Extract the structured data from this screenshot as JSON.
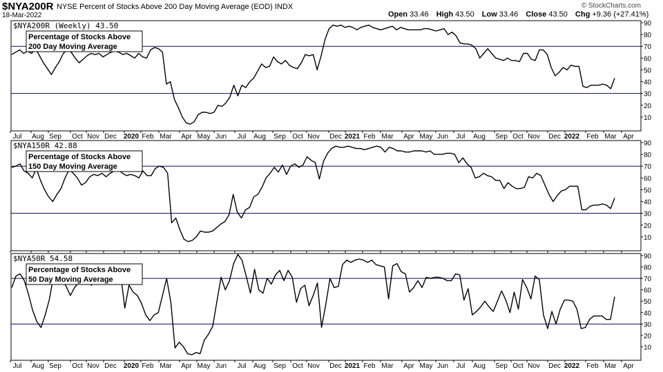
{
  "header": {
    "symbol": "$NYA200R",
    "description": "NYSE Percent of Stocks Above 200 Day Moving Average (EOD) INDX",
    "date": "18-Mar-2022",
    "open_label": "Open",
    "open": "33.46",
    "high_label": "High",
    "high": "43.50",
    "low_label": "Low",
    "low": "33.46",
    "close_label": "Close",
    "close": "43.50",
    "chg_label": "Chg",
    "chg": "+9.36 (+27.41%)",
    "chg_color": "#000000",
    "brand": "© StockCharts.com"
  },
  "chart_data": [
    {
      "type": "line",
      "title": "$NYA200R (Weekly) 43.50",
      "label": "Percentage of Stocks Above 200 Day Moving Average",
      "label_lines": [
        "Percentage of Stocks Above",
        "200 Day Moving Average"
      ],
      "ylim": [
        0,
        90
      ],
      "yticks": [
        10,
        20,
        30,
        40,
        50,
        60,
        70,
        80,
        90
      ],
      "reference_lines": [
        30,
        70
      ],
      "x_labels": [
        "Jul",
        "Aug",
        "Sep",
        "Oct",
        "Nov",
        "Dec",
        "2020",
        "Feb",
        "Mar",
        "Apr",
        "May",
        "Jun",
        "Jul",
        "Aug",
        "Sep",
        "Oct",
        "Nov",
        "Dec",
        "2021",
        "Feb",
        "Mar",
        "Apr",
        "May",
        "Jun",
        "Jul",
        "Aug",
        "Sep",
        "Oct",
        "Nov",
        "Dec",
        "2022",
        "Feb",
        "Mar",
        "Apr"
      ],
      "values": [
        63,
        65,
        67,
        64,
        66,
        64,
        68,
        62,
        56,
        51,
        46,
        52,
        57,
        64,
        67,
        65,
        60,
        56,
        59,
        62,
        64,
        63,
        64,
        61,
        63,
        65,
        66,
        65,
        63,
        64,
        62,
        60,
        64,
        61,
        60,
        67,
        69,
        68,
        65,
        38,
        40,
        25,
        18,
        10,
        5,
        4,
        6,
        12,
        14,
        14,
        13,
        14,
        20,
        19,
        22,
        27,
        37,
        28,
        37,
        35,
        40,
        43,
        49,
        55,
        52,
        53,
        61,
        57,
        55,
        58,
        54,
        52,
        51,
        56,
        63,
        62,
        63,
        50,
        62,
        76,
        85,
        88,
        87,
        88,
        86,
        87,
        86,
        84,
        86,
        87,
        88,
        86,
        85,
        84,
        85,
        86,
        87,
        84,
        86,
        85,
        84,
        84,
        84,
        84,
        85,
        85,
        84,
        83,
        84,
        85,
        80,
        82,
        79,
        73,
        72,
        72,
        71,
        68,
        60,
        64,
        68,
        64,
        60,
        59,
        58,
        60,
        58,
        58,
        57,
        64,
        64,
        59,
        58,
        67,
        67,
        63,
        52,
        45,
        48,
        52,
        50,
        54,
        53,
        53,
        36,
        35,
        37,
        37,
        37,
        38,
        37,
        34,
        43
      ]
    },
    {
      "type": "line",
      "title": "$NYA150R 42.88",
      "label": "Percentage of Stocks Above 150 Day Moving Average",
      "label_lines": [
        "Percentage of Stocks Above",
        "150 Day Moving Average"
      ],
      "ylim": [
        0,
        90
      ],
      "yticks": [
        10,
        20,
        30,
        40,
        50,
        60,
        70,
        80,
        90
      ],
      "reference_lines": [
        30,
        70
      ],
      "x_labels": [
        "Jul",
        "Aug",
        "Sep",
        "Oct",
        "Nov",
        "Dec",
        "2020",
        "Feb",
        "Mar",
        "Apr",
        "May",
        "Jun",
        "Jul",
        "Aug",
        "Sep",
        "Oct",
        "Nov",
        "Dec",
        "2021",
        "Feb",
        "Mar",
        "Apr",
        "May",
        "Jun",
        "Jul",
        "Aug",
        "Sep",
        "Oct",
        "Nov",
        "Dec",
        "2022",
        "Feb",
        "Mar",
        "Apr"
      ],
      "values": [
        69,
        70,
        72,
        66,
        64,
        60,
        68,
        58,
        50,
        44,
        40,
        46,
        51,
        60,
        67,
        64,
        60,
        54,
        56,
        61,
        63,
        62,
        64,
        61,
        64,
        66,
        67,
        64,
        62,
        63,
        62,
        60,
        66,
        62,
        62,
        68,
        70,
        69,
        64,
        22,
        26,
        16,
        8,
        6,
        7,
        10,
        15,
        14,
        14,
        15,
        18,
        21,
        23,
        29,
        46,
        31,
        26,
        33,
        35,
        44,
        46,
        52,
        60,
        64,
        69,
        65,
        71,
        63,
        70,
        72,
        69,
        71,
        78,
        75,
        73,
        59,
        74,
        81,
        85,
        87,
        86,
        86,
        87,
        86,
        85,
        85,
        84,
        85,
        86,
        87,
        86,
        82,
        86,
        85,
        83,
        83,
        82,
        82,
        83,
        83,
        83,
        82,
        83,
        80,
        80,
        80,
        81,
        81,
        80,
        73,
        77,
        72,
        69,
        60,
        61,
        64,
        62,
        61,
        58,
        58,
        51,
        56,
        53,
        51,
        51,
        52,
        61,
        60,
        64,
        62,
        54,
        46,
        40,
        45,
        49,
        50,
        53,
        53,
        53,
        33,
        33,
        36,
        37,
        37,
        38,
        37,
        34,
        43
      ]
    },
    {
      "type": "line",
      "title": "$NYA50R 54.58",
      "label": "Percentage of Stocks Above 50 Day Moving Average",
      "label_lines": [
        "Percentage of Stocks Above",
        "50 Day Moving Average"
      ],
      "ylim": [
        0,
        90
      ],
      "yticks": [
        10,
        20,
        30,
        40,
        50,
        60,
        70,
        80,
        90
      ],
      "reference_lines": [
        30,
        70
      ],
      "x_labels": [
        "Jul",
        "Aug",
        "Sep",
        "Oct",
        "Nov",
        "Dec",
        "2020",
        "Feb",
        "Mar",
        "Apr",
        "May",
        "Jun",
        "Jul",
        "Aug",
        "Sep",
        "Oct",
        "Nov",
        "Dec",
        "2021",
        "Feb",
        "Mar",
        "Apr",
        "May",
        "Jun",
        "Jul",
        "Aug",
        "Sep",
        "Oct",
        "Nov",
        "Dec",
        "2022",
        "Feb",
        "Mar",
        "Apr"
      ],
      "values": [
        62,
        72,
        74,
        68,
        56,
        42,
        32,
        27,
        38,
        52,
        72,
        76,
        69,
        63,
        55,
        62,
        66,
        70,
        68,
        64,
        68,
        72,
        73,
        70,
        75,
        76,
        74,
        44,
        64,
        58,
        55,
        48,
        38,
        33,
        38,
        40,
        55,
        70,
        49,
        9,
        14,
        10,
        4,
        3,
        5,
        4,
        16,
        21,
        28,
        50,
        71,
        60,
        68,
        83,
        91,
        86,
        72,
        57,
        78,
        60,
        57,
        70,
        65,
        73,
        77,
        68,
        77,
        71,
        49,
        61,
        64,
        46,
        55,
        66,
        27,
        47,
        70,
        62,
        63,
        82,
        86,
        84,
        86,
        87,
        86,
        84,
        86,
        82,
        81,
        80,
        52,
        81,
        83,
        76,
        74,
        58,
        62,
        68,
        62,
        71,
        70,
        71,
        71,
        70,
        68,
        68,
        74,
        73,
        51,
        61,
        38,
        41,
        45,
        50,
        45,
        41,
        50,
        59,
        51,
        40,
        58,
        43,
        69,
        62,
        52,
        72,
        69,
        38,
        26,
        41,
        30,
        43,
        51,
        51,
        50,
        43,
        26,
        27,
        34,
        37,
        37,
        37,
        34,
        34,
        54
      ]
    }
  ]
}
